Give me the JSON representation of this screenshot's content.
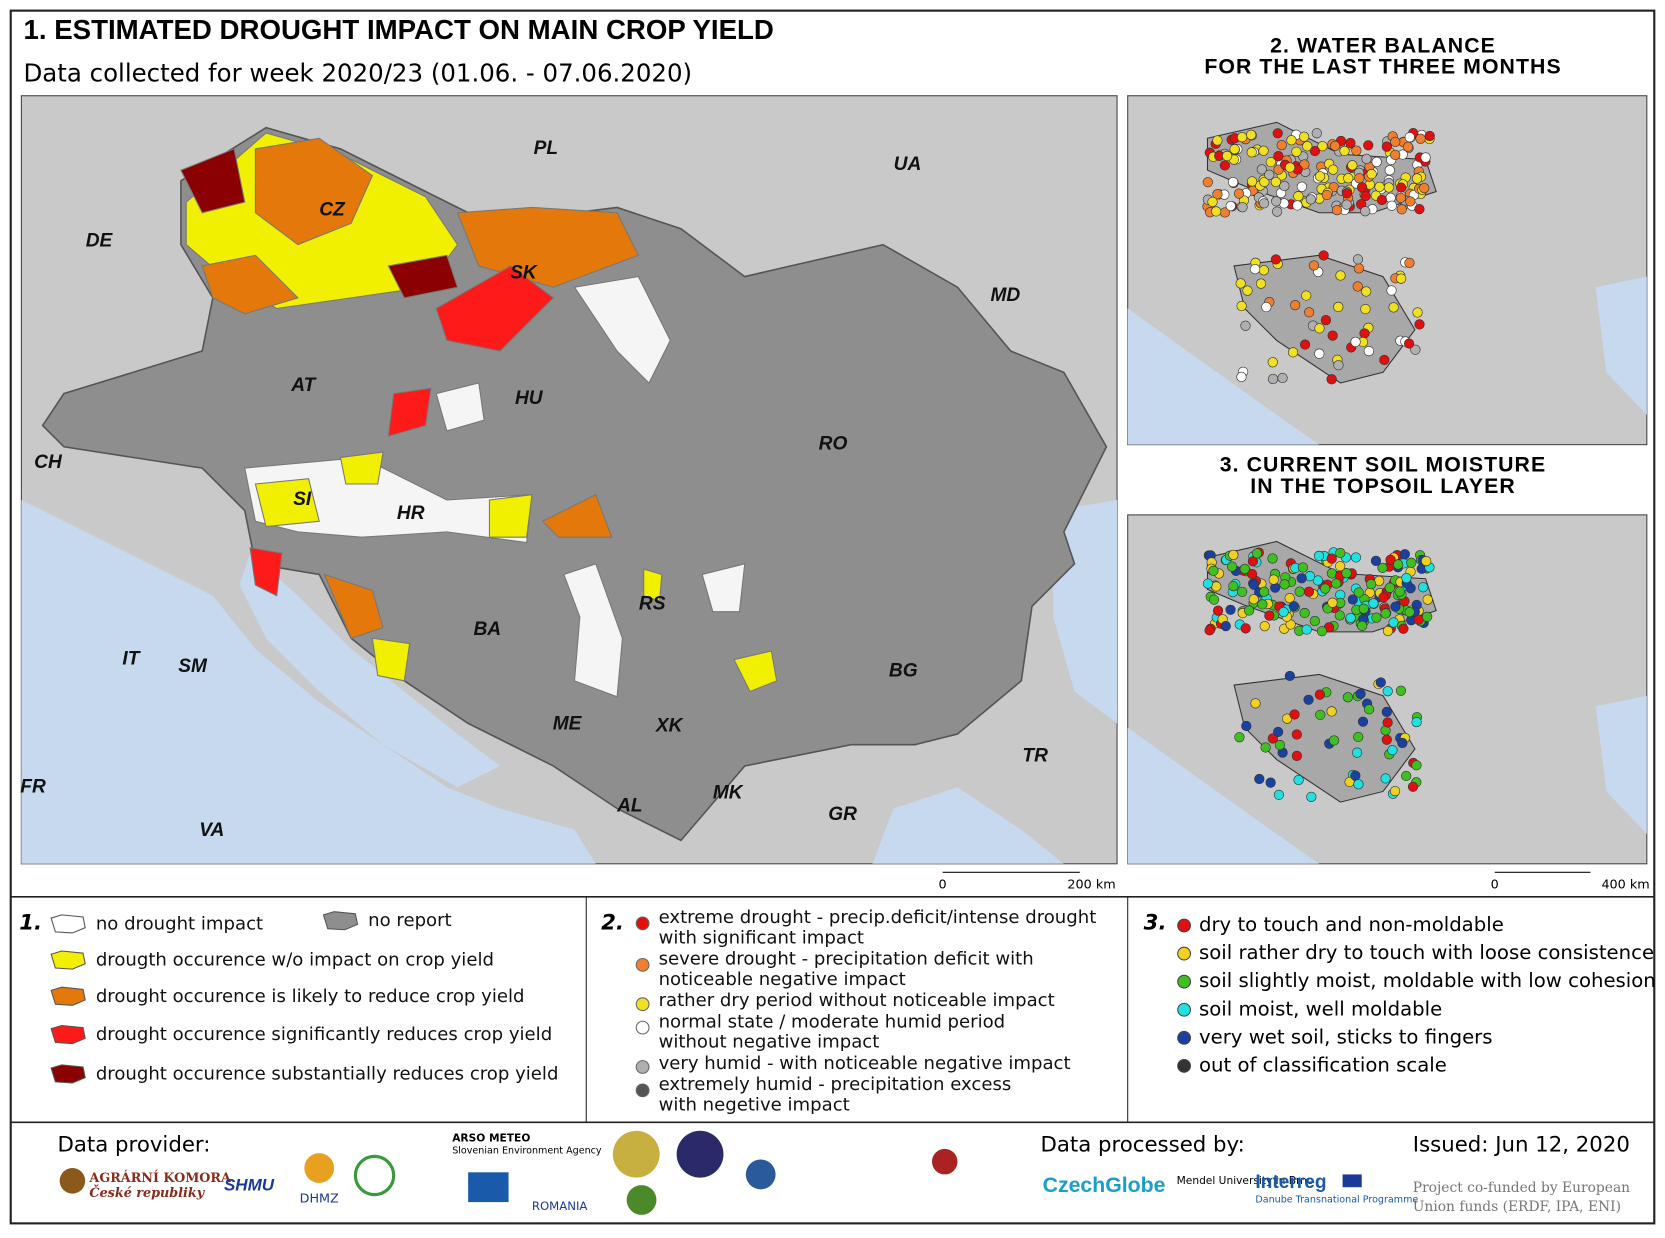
{
  "main_map": {
    "title": "1. ESTIMATED DROUGHT IMPACT ON MAIN CROP YIELD",
    "subtitle": "Data collected for week 2020/23 (01.06. - 07.06.2020)",
    "labels": [
      "PL",
      "UA",
      "DE",
      "CZ",
      "SK",
      "MD",
      "AT",
      "HU",
      "CH",
      "RO",
      "SI",
      "HR",
      "RS",
      "BA",
      "IT",
      "SM",
      "BG",
      "ME",
      "XK",
      "TR",
      "FR",
      "MK",
      "AL",
      "GR",
      "VA"
    ],
    "scale": [
      "0",
      "200 km"
    ]
  },
  "water_balance": {
    "title": [
      "2. WATER BALANCE",
      "FOR THE LAST THREE MONTHS"
    ]
  },
  "soil_moisture": {
    "title": [
      "3. CURRENT SOIL MOISTURE",
      "IN THE TOPSOIL LAYER"
    ],
    "scale": [
      "0",
      "400 km"
    ]
  },
  "legend1": {
    "number": "1.",
    "items": [
      "no drought impact",
      "no report",
      "drougth occurence w/o impact on crop yield",
      "drought occurence is likely to reduce crop yield",
      "drought occurence significantly reduces crop yield",
      "drought occurence substantially reduces crop yield"
    ]
  },
  "legend2": {
    "number": "2.",
    "items": [
      [
        "extreme drought - precip.deficit/intense drought",
        "with significant impact"
      ],
      [
        "severe drought - precipitation deficit with",
        "noticeable negative impact"
      ],
      [
        "rather dry period without noticeable impact"
      ],
      [
        "normal state / moderate humid period",
        "without negative impact"
      ],
      [
        "very humid - with noticeable negative impact"
      ],
      [
        "extremely humid - precipitation excess",
        "with negetive impact"
      ]
    ]
  },
  "legend3": {
    "number": "3.",
    "items": [
      "dry to touch and non-moldable",
      "soil rather dry to touch with loose consistence",
      "soil slightly moist, moldable with low cohesion",
      "soil moist, well moldable",
      "very wet soil, sticks to fingers",
      "out of classification scale"
    ]
  },
  "footer": {
    "provider_label": "Data provider:",
    "providers": [
      "AGRÁRNÍ KOMORA",
      "České republiky",
      "SHMU",
      "DHMZ",
      "ARSO METEO",
      "Slovenian Environment Agency",
      "ROMANIA"
    ],
    "processed_label": "Data processed by:",
    "processors": [
      "CzechGlobe",
      "Mendel University in Brno",
      "Interreg",
      "Danube Transnational Programme"
    ],
    "issued": "Issued: Jun 12, 2020",
    "funding": [
      "Project co-funded by European",
      "Union funds (ERDF, IPA, ENI)"
    ]
  }
}
